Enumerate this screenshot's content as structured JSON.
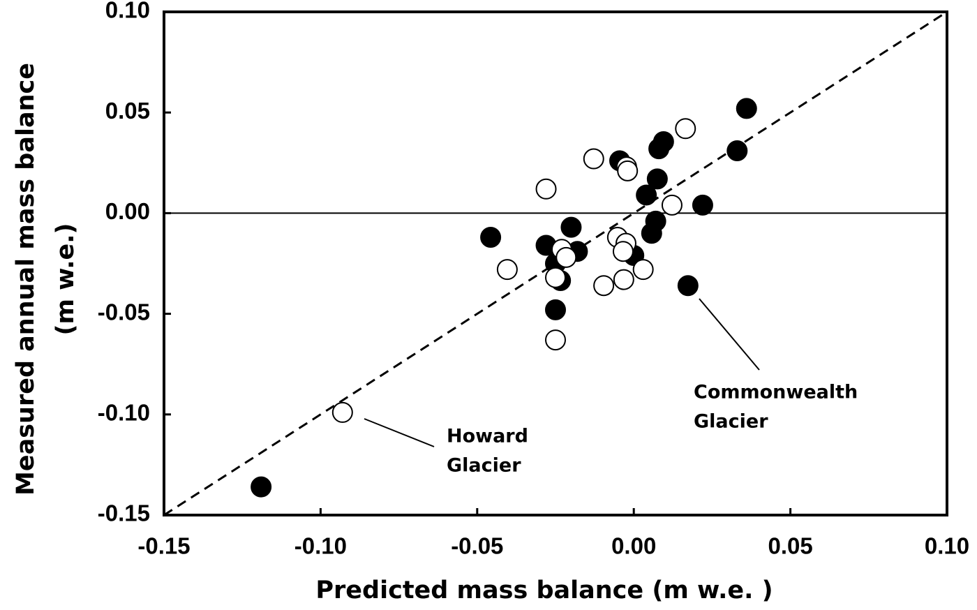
{
  "chart_data": {
    "type": "scatter",
    "xlabel": "Predicted mass balance (m w.e. )",
    "ylabel": [
      "Measured annual mass balance",
      "(m w.e.)"
    ],
    "xlim": [
      -0.15,
      0.1
    ],
    "ylim": [
      -0.15,
      0.1
    ],
    "xticks": [
      {
        "value": -0.15,
        "label": "-0.15"
      },
      {
        "value": -0.1,
        "label": "-0.10"
      },
      {
        "value": -0.05,
        "label": "-0.05"
      },
      {
        "value": 0,
        "label": "0.00"
      },
      {
        "value": 0.05,
        "label": "0.05"
      },
      {
        "value": 0.1,
        "label": "0.10"
      }
    ],
    "yticks": [
      {
        "value": -0.15,
        "label": "-0.15"
      },
      {
        "value": -0.1,
        "label": "-0.10"
      },
      {
        "value": -0.05,
        "label": "-0.05"
      },
      {
        "value": 0,
        "label": "0.00"
      },
      {
        "value": 0.05,
        "label": "0.05"
      },
      {
        "value": 0.1,
        "label": "0.10"
      }
    ],
    "identity_line": true,
    "zero_line": true,
    "series": [
      {
        "color": "#000000",
        "filled": true,
        "x": [
          0.036,
          0.033,
          0.0095,
          0.008,
          -0.0045,
          0.0075,
          0.004,
          0.022,
          0.007,
          0.0057,
          -0.0457,
          -0.02,
          -0.028,
          -0.018,
          0.0,
          -0.025,
          -0.0234,
          -0.025,
          0.0173,
          -0.119
        ],
        "values": [
          0.052,
          0.031,
          0.0355,
          0.032,
          0.026,
          0.017,
          0.009,
          0.004,
          -0.004,
          -0.01,
          -0.012,
          -0.007,
          -0.016,
          -0.019,
          -0.021,
          -0.025,
          -0.0335,
          -0.048,
          -0.036,
          -0.136
        ]
      },
      {
        "color": "#000000",
        "filled": false,
        "x": [
          0.0165,
          -0.0128,
          -0.0023,
          -0.002,
          -0.028,
          0.0122,
          -0.0052,
          -0.0025,
          -0.0034,
          -0.023,
          -0.0216,
          -0.0404,
          0.003,
          -0.025,
          -0.0096,
          -0.0032,
          -0.025,
          -0.093
        ],
        "values": [
          0.042,
          0.027,
          0.023,
          0.021,
          0.012,
          0.004,
          -0.012,
          -0.015,
          -0.019,
          -0.018,
          -0.022,
          -0.028,
          -0.028,
          -0.032,
          -0.036,
          -0.033,
          -0.063,
          -0.099
        ]
      }
    ],
    "annotations": [
      {
        "text": [
          "Howard",
          "Glacier"
        ]
      },
      {
        "text": [
          "Commonwealth",
          "Glacier"
        ]
      }
    ]
  }
}
